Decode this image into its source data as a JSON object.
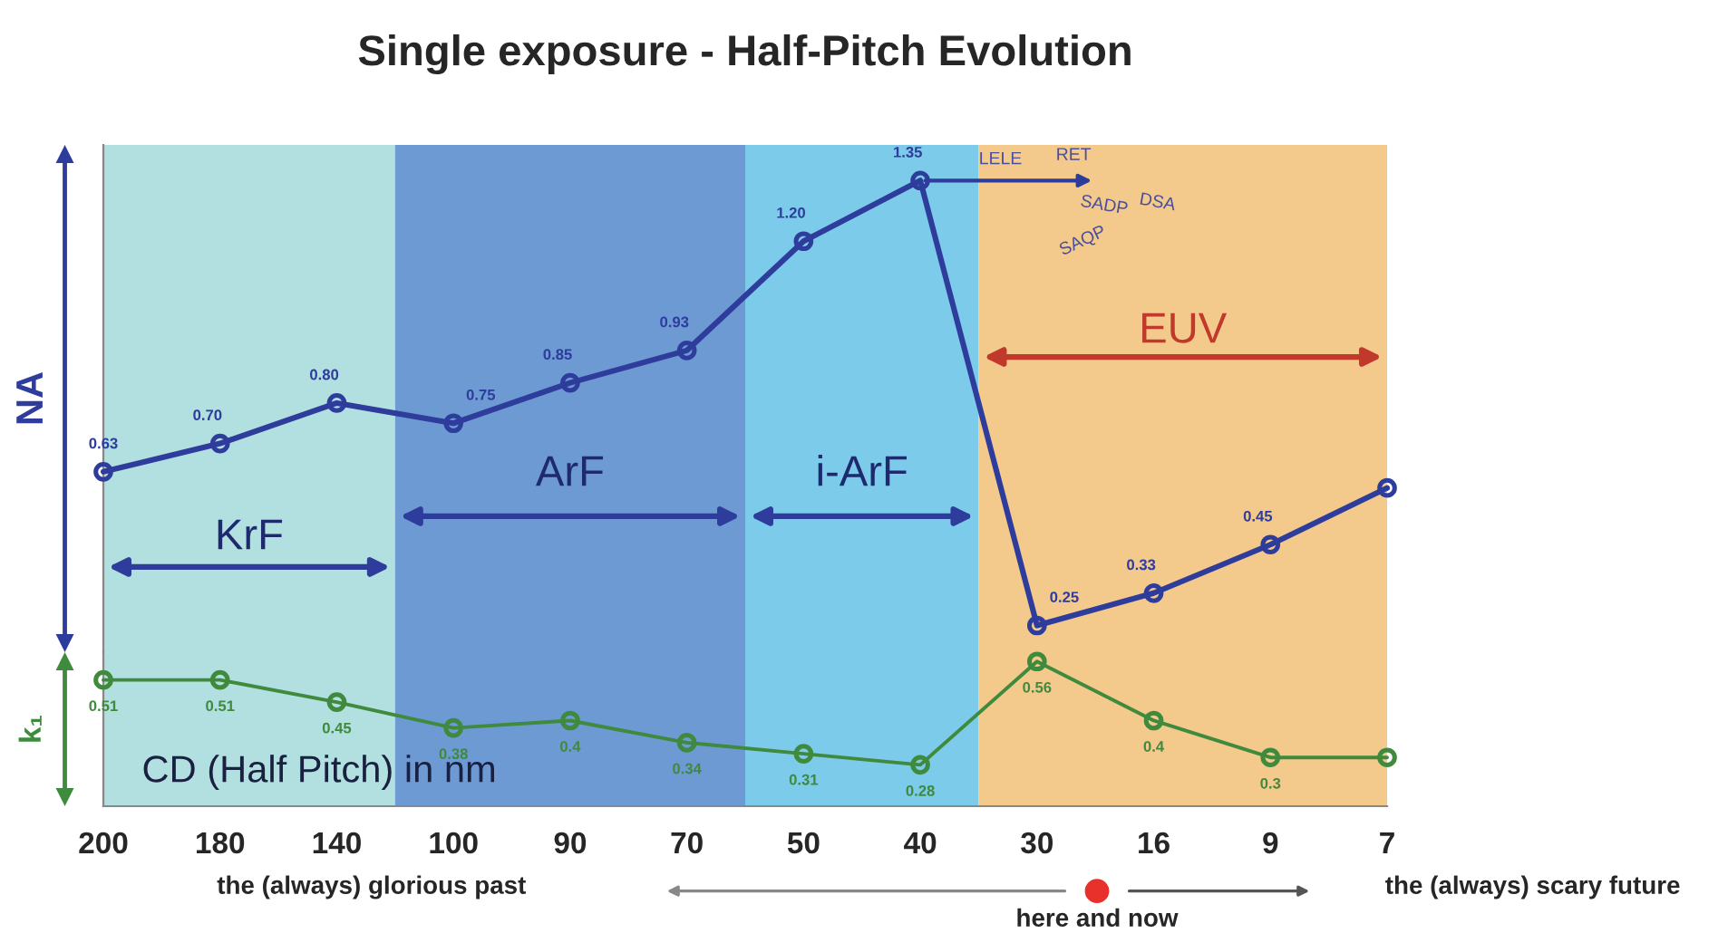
{
  "chart_data": [
    {
      "type": "line",
      "title": "Single exposure - Half-Pitch Evolution",
      "ylabel": "NA",
      "categories": [
        "200",
        "180",
        "140",
        "100",
        "90",
        "70",
        "50",
        "40",
        "30",
        "16",
        "9",
        "7"
      ],
      "tick_labels": false,
      "marker": "circle",
      "line_style": "solid",
      "series": [
        {
          "color": "#2e3c9c",
          "values": [
            0.63,
            0.7,
            0.8,
            0.75,
            0.85,
            0.93,
            1.2,
            1.35,
            0.25,
            0.33,
            0.45,
            0.59
          ],
          "value_labels": [
            "0.63",
            "0.70",
            "0.80",
            "0.75",
            "0.85",
            "0.93",
            "1.20",
            "1.35",
            "0.25",
            "0.33",
            "0.45",
            null
          ]
        }
      ],
      "bands": [
        {
          "axis": "x",
          "from": "200",
          "to": "140",
          "label": "KrF",
          "color": "#b2dfe0"
        },
        {
          "axis": "x",
          "from": "100",
          "to": "70",
          "label": "ArF",
          "color": "#6e9ad4"
        },
        {
          "axis": "x",
          "from": "50",
          "to": "40",
          "label": "i-ArF",
          "color": "#7ccbea"
        },
        {
          "axis": "x",
          "from": "30",
          "to": "7",
          "label": "EUV",
          "color": "#f3c98c"
        }
      ],
      "annotations": [
        "LELE",
        "RET",
        "SADP",
        "SAQP",
        "DSA"
      ]
    },
    {
      "type": "line",
      "ylabel": "k₁",
      "categories": [
        "200",
        "180",
        "140",
        "100",
        "90",
        "70",
        "50",
        "40",
        "30",
        "16",
        "9",
        "7"
      ],
      "tick_labels": "x",
      "marker": "circle",
      "line_style": "solid",
      "series": [
        {
          "color": "#3f8a3c",
          "values": [
            0.51,
            0.51,
            0.45,
            0.38,
            0.4,
            0.34,
            0.31,
            0.28,
            0.56,
            0.4,
            0.3,
            0.3
          ],
          "value_labels": [
            "0.51",
            "0.51",
            "0.45",
            "0.38",
            "0.4",
            "0.34",
            "0.31",
            "0.28",
            "0.56",
            "0.4",
            "0.3",
            null
          ]
        }
      ],
      "bands": [
        {
          "axis": "x",
          "from": "200",
          "to": "140",
          "color": "#b2dfe0"
        },
        {
          "axis": "x",
          "from": "100",
          "to": "70",
          "color": "#6e9ad4"
        },
        {
          "axis": "x",
          "from": "50",
          "to": "40",
          "color": "#7ccbea"
        },
        {
          "axis": "x",
          "from": "30",
          "to": "7",
          "color": "#f3c98c"
        }
      ],
      "annotations": [
        "CD (Half Pitch) in nm",
        "the (always) glorious past",
        "here and now",
        "the (always) scary future"
      ]
    }
  ]
}
